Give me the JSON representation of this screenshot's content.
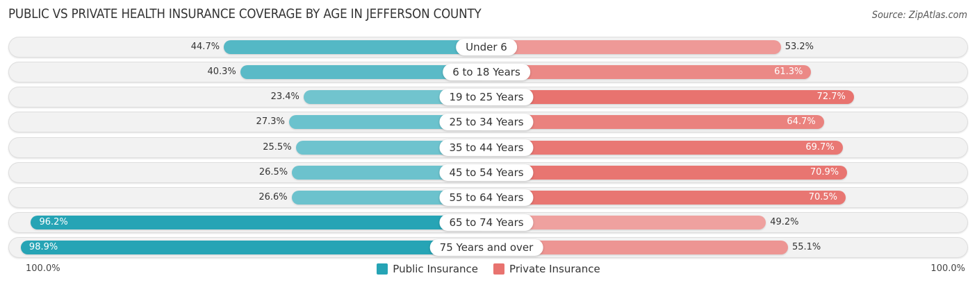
{
  "header": {
    "title": "PUBLIC VS PRIVATE HEALTH INSURANCE COVERAGE BY AGE IN JEFFERSON COUNTY",
    "source": "Source: ZipAtlas.com"
  },
  "colors": {
    "public_strong": "#26a4b5",
    "public_light": "#75c6d0",
    "private_strong": "#e8736f",
    "private_light": "#f0aaa8"
  },
  "chart_data": {
    "type": "bar",
    "orientation": "horizontal-diverging",
    "title": "PUBLIC VS PRIVATE HEALTH INSURANCE COVERAGE BY AGE IN JEFFERSON COUNTY",
    "categories": [
      "Under 6",
      "6 to 18 Years",
      "19 to 25 Years",
      "25 to 34 Years",
      "35 to 44 Years",
      "45 to 54 Years",
      "55 to 64 Years",
      "65 to 74 Years",
      "75 Years and over"
    ],
    "series": [
      {
        "name": "Public Insurance",
        "side": "left",
        "values": [
          44.7,
          40.3,
          23.4,
          27.3,
          25.5,
          26.5,
          26.6,
          96.2,
          98.9
        ],
        "labels": [
          "44.7%",
          "40.3%",
          "23.4%",
          "27.3%",
          "25.5%",
          "26.5%",
          "26.6%",
          "96.2%",
          "98.9%"
        ]
      },
      {
        "name": "Private Insurance",
        "side": "right",
        "values": [
          53.2,
          61.3,
          72.7,
          64.7,
          69.7,
          70.9,
          70.5,
          49.2,
          55.1
        ],
        "labels": [
          "53.2%",
          "61.3%",
          "72.7%",
          "64.7%",
          "69.7%",
          "70.9%",
          "70.5%",
          "49.2%",
          "55.1%"
        ]
      }
    ],
    "xlim": [
      0,
      100
    ],
    "axis_left_label": "100.0%",
    "axis_right_label": "100.0%",
    "legend": {
      "position": "bottom-center",
      "entries": [
        "Public Insurance",
        "Private Insurance"
      ]
    },
    "grid": false
  }
}
